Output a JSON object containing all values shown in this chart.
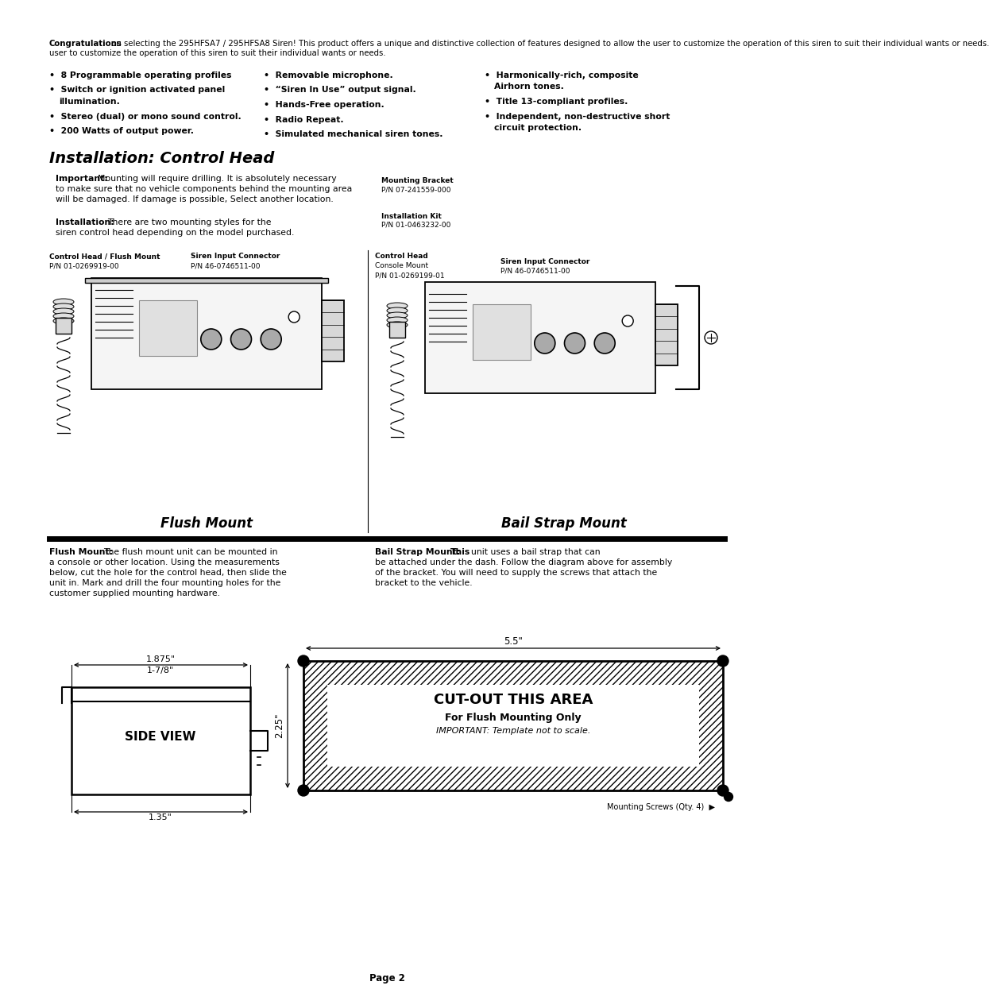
{
  "bg_color": "#ffffff",
  "intro_bold": "Congratulations",
  "intro_text": " on selecting the 295HFSA7 / 295HFSA8 Siren! This product offers a unique and distinctive collection of features designed to allow the user to customize the operation of this siren to suit their individual wants or needs.",
  "bullet_col1": [
    [
      "8 Programmable operating profiles",
      false
    ],
    [
      "Switch or ignition activated panel\nillumination.",
      false
    ],
    [
      "Stereo (dual) or mono sound control.",
      false
    ],
    [
      "200 Watts of output power.",
      false
    ]
  ],
  "bullet_col2": [
    [
      "Removable microphone.",
      false
    ],
    [
      "“Siren In Use” output signal.",
      false
    ],
    [
      "Hands-Free operation.",
      false
    ],
    [
      "Radio Repeat.",
      false
    ],
    [
      "Simulated mechanical siren tones.",
      false
    ]
  ],
  "bullet_col3": [
    [
      "Harmonically-rich, composite\nAirhorn tones.",
      false
    ],
    [
      "Title 13-compliant profiles.",
      false
    ],
    [
      "Independent, non-destructive short\ncircuit protection.",
      false
    ]
  ],
  "section_title": "Installation: Control Head",
  "important_bold": "Important:",
  "important_text": "Mounting will require drilling. It is absolutely necessary\nto make sure that no vehicle components behind the mounting area\nwill be damaged. If damage is possible, Select another location.",
  "install_bold": "Installation:",
  "install_text": "There are two mounting styles for the\nsiren control head depending on the model purchased.",
  "mounting_bracket_label": "Mounting Bracket",
  "mounting_bracket_pn": "P/N 07-241559-000",
  "install_kit_label": "Installation Kit",
  "install_kit_pn": "P/N 01-0463232-00",
  "flush_mount_label": "Control Head / Flush Mount",
  "flush_mount_pn": "P/N 01-0269919-00",
  "flush_connector_label": "Siren Input Connector",
  "flush_connector_pn": "P/N 46-0746511-00",
  "console_mount_label": "Control Head",
  "console_mount_sub": "Console Mount",
  "console_mount_pn": "P/N 01-0269199-01",
  "console_connector_label": "Siren Input Connector",
  "console_connector_pn": "P/N 46-0746511-00",
  "flush_mount_caption": "Flush Mount",
  "bail_strap_caption": "Bail Strap Mount",
  "flush_desc_bold": "Flush Mount:",
  "flush_desc": "The flush mount unit can be mounted in\na console or other location. Using the measurements\nbelow, cut the hole for the control head, then slide the\nunit in. Mark and drill the four mounting holes for the\ncustomer supplied mounting hardware.",
  "bail_desc_bold": "Bail Strap Mount:",
  "bail_desc_bold2": "This",
  "bail_desc": "unit uses a bail strap that can\nbe attached under the dash. Follow the diagram above for assembly\nof the bracket. You will need to supply the screws that attach the\nbracket to the vehicle.",
  "cutout_title": "CUT-OUT THIS AREA",
  "cutout_sub": "For Flush Mounting Only",
  "cutout_note": "IMPORTANT: Template not to scale.",
  "cutout_width": "5.5\"",
  "cutout_height": "2.25\"",
  "side_view_label": "SIDE VIEW",
  "side_dim_top": "1.875\"",
  "side_dim_top2": "1-7/8\"",
  "side_dim_bottom": "1.35\"",
  "mounting_screws": "Mounting Screws (Qty. 4)",
  "page_label": "Page 2"
}
